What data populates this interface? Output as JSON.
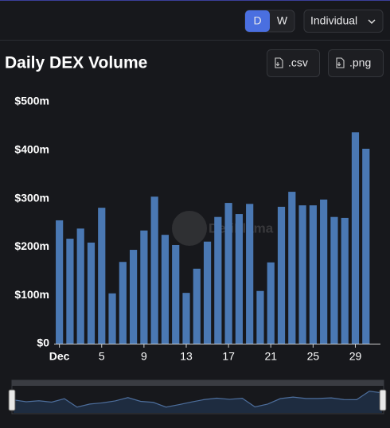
{
  "controls": {
    "day": "D",
    "week": "W",
    "mode": "Individual",
    "csv": ".csv",
    "png": ".png"
  },
  "watermark": "DefiLlama",
  "chart_data": {
    "type": "bar",
    "title": "Daily DEX Volume",
    "categories": [
      "Dec",
      null,
      null,
      null,
      "5",
      null,
      null,
      null,
      "9",
      null,
      null,
      null,
      "13",
      null,
      null,
      null,
      "17",
      null,
      null,
      null,
      "21",
      null,
      null,
      null,
      "25",
      null,
      null,
      null,
      "29",
      null
    ],
    "values": [
      255,
      217,
      238,
      209,
      281,
      104,
      169,
      194,
      234,
      304,
      225,
      204,
      105,
      155,
      211,
      262,
      291,
      268,
      289,
      109,
      168,
      283,
      314,
      286,
      286,
      298,
      262,
      260,
      437,
      403
    ],
    "color": "#4a78b3",
    "ylim": [
      0,
      500
    ],
    "yticks": [
      {
        "value": 0,
        "label": "$0"
      },
      {
        "value": 100,
        "label": "$100m"
      },
      {
        "value": 200,
        "label": "$200m"
      },
      {
        "value": 300,
        "label": "$300m"
      },
      {
        "value": 400,
        "label": "$400m"
      },
      {
        "value": 500,
        "label": "$500m"
      }
    ],
    "grid": false
  }
}
